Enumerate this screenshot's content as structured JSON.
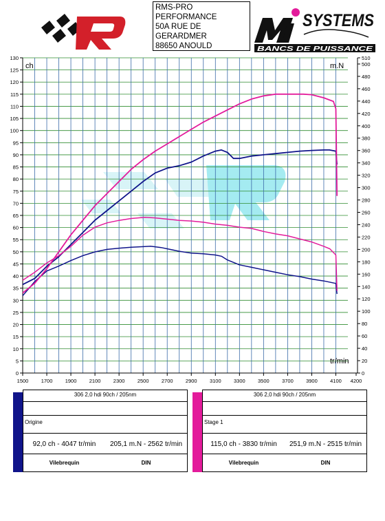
{
  "header": {
    "address_lines": [
      "RMS-PRO",
      "PERFORMANCE",
      "50A RUE DE",
      "GERARDMER",
      "88650 ANOULD"
    ],
    "brand_right": "SYSTEMS",
    "brand_right_sub": "BANCS DE PUISSANCE"
  },
  "chart_data": {
    "type": "line",
    "xlabel": "tr/min",
    "ylabel_left": "ch",
    "ylabel_right": "m.N",
    "xlim": [
      1500,
      4200
    ],
    "ylim_left": [
      0,
      130
    ],
    "ylim_right": [
      0,
      510
    ],
    "x_ticks": [
      1500,
      1700,
      1900,
      2100,
      2300,
      2500,
      2700,
      2900,
      3100,
      3300,
      3500,
      3700,
      3900,
      4100,
      4200
    ],
    "y_left_ticks": [
      0,
      5,
      10,
      15,
      20,
      25,
      30,
      35,
      40,
      45,
      50,
      55,
      60,
      65,
      70,
      75,
      80,
      85,
      90,
      95,
      100,
      105,
      110,
      115,
      120,
      125,
      130
    ],
    "y_right_ticks": [
      0,
      20,
      40,
      60,
      80,
      100,
      120,
      140,
      160,
      180,
      200,
      220,
      240,
      260,
      280,
      300,
      320,
      340,
      360,
      380,
      400,
      420,
      440,
      460,
      480,
      500,
      510
    ],
    "grid": true,
    "series": [
      {
        "name": "Origine",
        "kind": "power",
        "axis": "left",
        "color": "#10148a",
        "points": [
          [
            1500,
            36.5
          ],
          [
            1600,
            39
          ],
          [
            1700,
            44
          ],
          [
            1800,
            48
          ],
          [
            1900,
            53
          ],
          [
            2000,
            58
          ],
          [
            2100,
            63
          ],
          [
            2200,
            67
          ],
          [
            2300,
            71
          ],
          [
            2400,
            75
          ],
          [
            2500,
            79
          ],
          [
            2600,
            82.5
          ],
          [
            2700,
            84.5
          ],
          [
            2800,
            85.5
          ],
          [
            2900,
            87
          ],
          [
            3000,
            89.5
          ],
          [
            3100,
            91.5
          ],
          [
            3150,
            92
          ],
          [
            3200,
            91
          ],
          [
            3250,
            88.5
          ],
          [
            3300,
            88.5
          ],
          [
            3400,
            89.5
          ],
          [
            3500,
            90
          ],
          [
            3600,
            90.5
          ],
          [
            3700,
            91
          ],
          [
            3800,
            91.5
          ],
          [
            3900,
            91.8
          ],
          [
            4000,
            92
          ],
          [
            4047,
            92
          ],
          [
            4100,
            91.5
          ],
          [
            4110,
            86
          ]
        ]
      },
      {
        "name": "Origine",
        "kind": "torque",
        "axis": "right",
        "color": "#10148a",
        "points": [
          [
            1500,
            125
          ],
          [
            1600,
            148
          ],
          [
            1700,
            165
          ],
          [
            1800,
            173
          ],
          [
            1900,
            182
          ],
          [
            2000,
            190
          ],
          [
            2100,
            196
          ],
          [
            2200,
            200
          ],
          [
            2300,
            202
          ],
          [
            2400,
            203.5
          ],
          [
            2500,
            204.5
          ],
          [
            2562,
            205.1
          ],
          [
            2650,
            203
          ],
          [
            2800,
            197
          ],
          [
            2900,
            194
          ],
          [
            3000,
            193
          ],
          [
            3100,
            191
          ],
          [
            3150,
            189
          ],
          [
            3200,
            183
          ],
          [
            3300,
            175
          ],
          [
            3400,
            171
          ],
          [
            3500,
            167
          ],
          [
            3600,
            163
          ],
          [
            3700,
            159
          ],
          [
            3800,
            156
          ],
          [
            3900,
            152
          ],
          [
            4000,
            149
          ],
          [
            4100,
            145
          ],
          [
            4110,
            128
          ]
        ]
      },
      {
        "name": "Stage 1",
        "kind": "power",
        "axis": "left",
        "color": "#e31b9b",
        "points": [
          [
            1500,
            33
          ],
          [
            1600,
            37
          ],
          [
            1700,
            43
          ],
          [
            1800,
            50
          ],
          [
            1900,
            57
          ],
          [
            2000,
            63
          ],
          [
            2100,
            69
          ],
          [
            2200,
            74
          ],
          [
            2300,
            79
          ],
          [
            2400,
            84
          ],
          [
            2500,
            88
          ],
          [
            2600,
            91.5
          ],
          [
            2700,
            94.5
          ],
          [
            2800,
            97.5
          ],
          [
            2900,
            100.5
          ],
          [
            3000,
            103.5
          ],
          [
            3100,
            106
          ],
          [
            3200,
            108.5
          ],
          [
            3300,
            111
          ],
          [
            3400,
            113
          ],
          [
            3500,
            114.3
          ],
          [
            3600,
            115
          ],
          [
            3700,
            115
          ],
          [
            3830,
            115
          ],
          [
            3900,
            114.8
          ],
          [
            4000,
            113.5
          ],
          [
            4080,
            112
          ],
          [
            4100,
            109
          ],
          [
            4110,
            73
          ]
        ]
      },
      {
        "name": "Stage 1",
        "kind": "torque",
        "axis": "right",
        "color": "#e31b9b",
        "points": [
          [
            1500,
            150
          ],
          [
            1600,
            163
          ],
          [
            1700,
            178
          ],
          [
            1800,
            190
          ],
          [
            1900,
            205
          ],
          [
            2000,
            223
          ],
          [
            2100,
            236
          ],
          [
            2200,
            243
          ],
          [
            2300,
            247
          ],
          [
            2400,
            250
          ],
          [
            2515,
            251.9
          ],
          [
            2600,
            251
          ],
          [
            2700,
            249
          ],
          [
            2800,
            247
          ],
          [
            2900,
            246
          ],
          [
            3000,
            244
          ],
          [
            3100,
            241
          ],
          [
            3200,
            239
          ],
          [
            3300,
            236
          ],
          [
            3400,
            234
          ],
          [
            3500,
            229
          ],
          [
            3600,
            225
          ],
          [
            3700,
            222
          ],
          [
            3800,
            217
          ],
          [
            3900,
            212
          ],
          [
            4000,
            205
          ],
          [
            4050,
            201
          ],
          [
            4100,
            191
          ],
          [
            4110,
            133
          ]
        ]
      }
    ]
  },
  "legend": [
    {
      "bar_color": "#10148a",
      "title": "306 2,0 hdi 90ch / 205nm",
      "name": "Origine",
      "power_text": "92,0 ch - 4047 tr/min",
      "torque_text": "205,1 m.N - 2562 tr/min",
      "foot_left": "Vilebrequin",
      "foot_right": "DIN"
    },
    {
      "bar_color": "#e31b9b",
      "title": "306 2,0 hdi 90ch / 205nm",
      "name": "Stage 1",
      "power_text": "115,0 ch - 3830 tr/min",
      "torque_text": "251,9 m.N - 2515 tr/min",
      "foot_left": "Vilebrequin",
      "foot_right": "DIN"
    }
  ]
}
